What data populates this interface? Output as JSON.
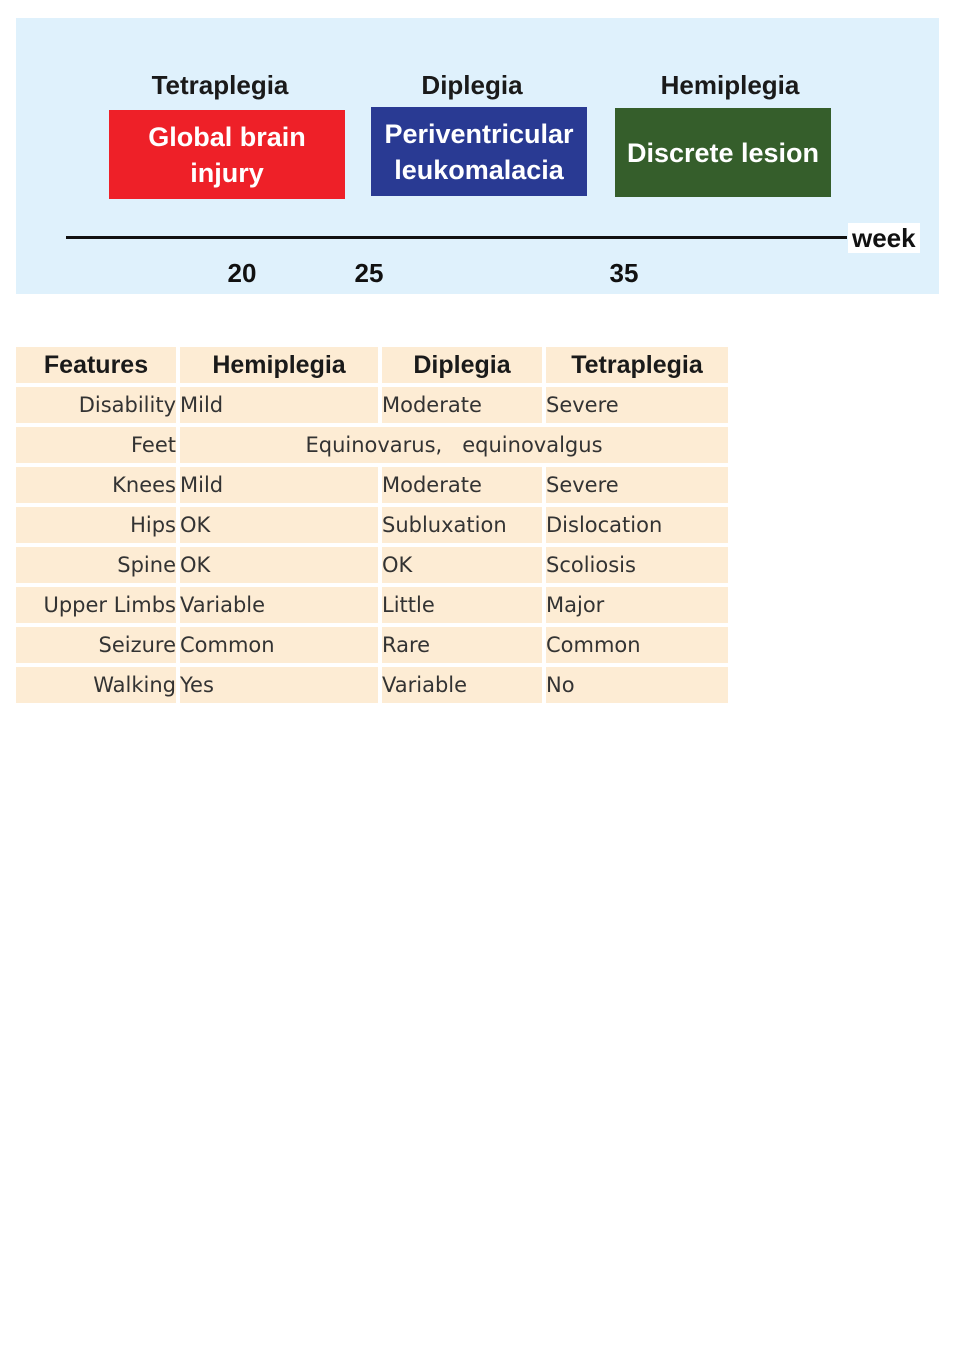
{
  "diagram": {
    "categories": [
      {
        "label": "Tetraplegia"
      },
      {
        "label": "Diplegia"
      },
      {
        "label": "Hemiplegia"
      }
    ],
    "lesions": [
      {
        "label": "Global brain\ninjury",
        "color": "#ee2028"
      },
      {
        "label": "Periventricular\nleukomalacia",
        "color": "#293a93"
      },
      {
        "label": "Discrete lesion",
        "color": "#355e2b"
      }
    ],
    "axis": {
      "unit": "week",
      "ticks": [
        "20",
        "25",
        "35"
      ]
    }
  },
  "table": {
    "headers": [
      "Features",
      "Hemiplegia",
      "Diplegia",
      "Tetraplegia"
    ],
    "rows": [
      {
        "label": "Disability",
        "values": [
          "Mild",
          "Moderate",
          "Severe"
        ]
      },
      {
        "label": "Feet",
        "span": "Equinovarus,   equinovalgus"
      },
      {
        "label": "Knees",
        "values": [
          "Mild",
          "Moderate",
          "Severe"
        ]
      },
      {
        "label": "Hips",
        "values": [
          "OK",
          "Subluxation",
          "Dislocation"
        ]
      },
      {
        "label": "Spine",
        "values": [
          "OK",
          "OK",
          "Scoliosis"
        ]
      },
      {
        "label": "Upper Limbs",
        "values": [
          "Variable",
          "Little",
          "Major"
        ]
      },
      {
        "label": "Seizure",
        "values": [
          "Common",
          "Rare",
          "Common"
        ]
      },
      {
        "label": "Walking",
        "values": [
          "Yes",
          "Variable",
          "No"
        ]
      }
    ]
  }
}
